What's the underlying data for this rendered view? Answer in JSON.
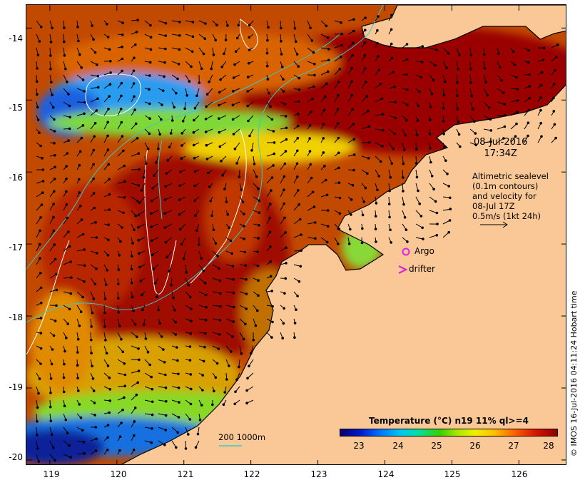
{
  "map": {
    "lat_ticks": [
      "-14",
      "-15",
      "-16",
      "-17",
      "-18",
      "-19",
      "-20"
    ],
    "lon_ticks": [
      "119",
      "120",
      "121",
      "122",
      "123",
      "124",
      "125",
      "126"
    ],
    "lon_range": [
      118.65,
      126.72
    ],
    "lat_range": [
      -13.68,
      -20.08
    ]
  },
  "annotations": {
    "date": "08-Jul-2016",
    "time": "17:34Z",
    "legend_lines": [
      "Altimetric sealevel",
      "(0.1m contours)",
      "and velocity for",
      "08-Jul 17Z",
      "0.5m/s (1kt 24h)"
    ],
    "argo_label": "Argo",
    "drifter_label": "drifter",
    "contour_depths": "200  1000m"
  },
  "colorbar": {
    "title": "Temperature (°C) n19 11% ql>=4",
    "ticks": [
      "23",
      "24",
      "25",
      "26",
      "27",
      "28"
    ],
    "range": [
      22.7,
      28.2
    ]
  },
  "credit": "© IMOS 16-Jul-2016 04:11:24 Hobart time",
  "colors": {
    "land": "#fac896",
    "warm": "#920000",
    "isobath": "#38c8c8",
    "sealevel_contour": "#ffffff",
    "argo_marker": "#e020e0"
  }
}
